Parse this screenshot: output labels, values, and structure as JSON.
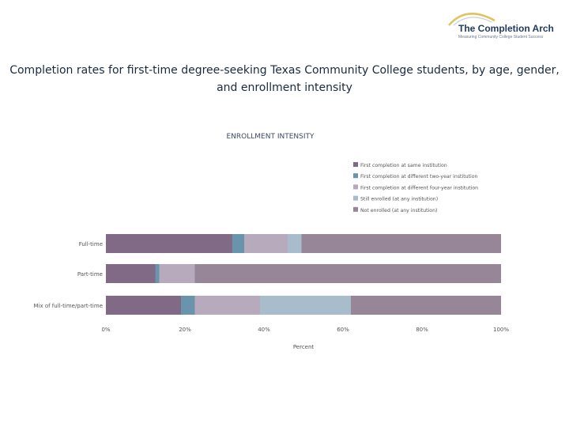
{
  "logo": {
    "title": "The Completion Arch",
    "subtitle": "Measuring Community College Student Success",
    "arc_color": "#e0c35a"
  },
  "slide_title": "Completion rates for first-time degree-seeking Texas Community College students, by age, gender, and enrollment intensity",
  "chart_data": {
    "type": "bar",
    "orientation": "horizontal",
    "stacked": true,
    "title": "ENROLLMENT INTENSITY",
    "xlabel": "Percent",
    "ylabel": "",
    "xlim": [
      0,
      100
    ],
    "x_ticks": [
      "0%",
      "20%",
      "40%",
      "60%",
      "80%",
      "100%"
    ],
    "x_tick_values": [
      0,
      20,
      40,
      60,
      80,
      100
    ],
    "legend_position": "top-right",
    "categories": [
      "Full-time",
      "Part-time",
      "Mix of full-time/part-time"
    ],
    "series": [
      {
        "name": "First completion at same institution",
        "color": "#806a86",
        "values": [
          32,
          12.5,
          19
        ]
      },
      {
        "name": "First completion at different two-year institution",
        "color": "#6a93ac",
        "values": [
          3,
          1,
          3.5
        ]
      },
      {
        "name": "First completion at different four-year institution",
        "color": "#b8aabd",
        "values": [
          11,
          9,
          16.5
        ]
      },
      {
        "name": "Still enrolled (at any institution)",
        "color": "#a8bccb",
        "values": [
          3.5,
          0,
          23
        ]
      },
      {
        "name": "Not enrolled (at any institution)",
        "color": "#968698",
        "values": [
          50.5,
          77.5,
          38
        ]
      }
    ]
  }
}
